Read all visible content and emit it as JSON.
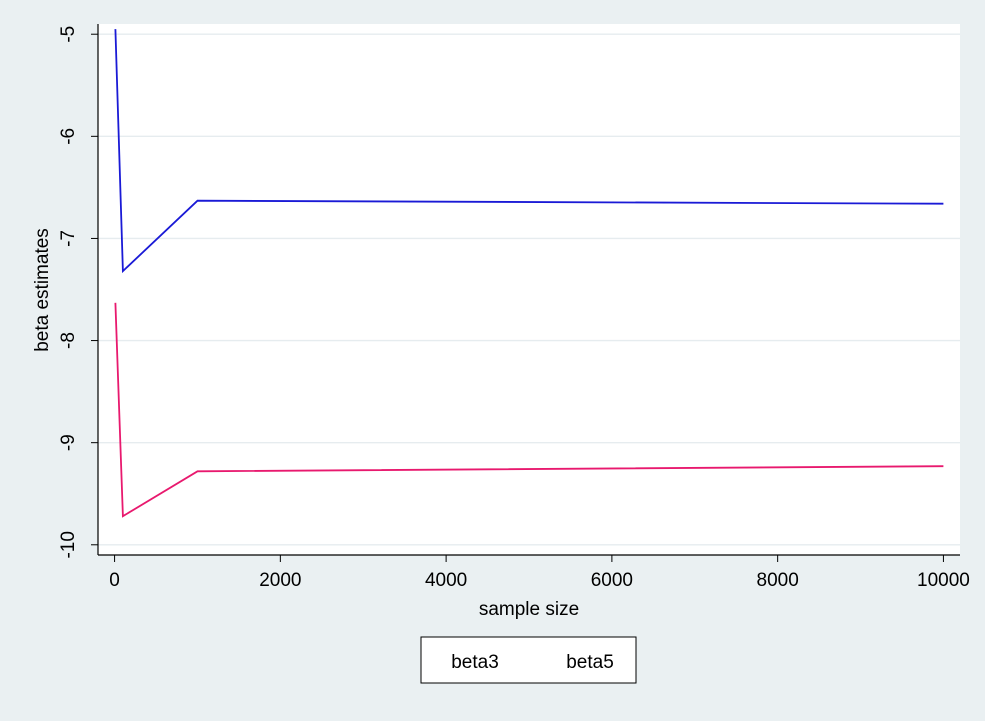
{
  "chart_data": {
    "type": "line",
    "title": "",
    "xlabel": "sample size",
    "ylabel": "beta estimates",
    "xlim": [
      -200,
      10200
    ],
    "ylim": [
      -10.1,
      -4.9
    ],
    "xticks": [
      0,
      2000,
      4000,
      6000,
      8000,
      10000
    ],
    "xtick_labels": [
      "0",
      "2000",
      "4000",
      "6000",
      "8000",
      "10000"
    ],
    "yticks": [
      -10,
      -9,
      -8,
      -7,
      -6,
      -5
    ],
    "ytick_labels": [
      "-10",
      "-9",
      "-8",
      "-7",
      "-6",
      "-5"
    ],
    "grid": true,
    "legend_position": "bottom",
    "series": [
      {
        "name": "beta3",
        "color": "#1a1ad6",
        "x": [
          10,
          100,
          1000,
          10000
        ],
        "y": [
          -4.95,
          -7.32,
          -6.63,
          -6.66
        ]
      },
      {
        "name": "beta5",
        "color": "#e8196e",
        "x": [
          10,
          100,
          1000,
          10000
        ],
        "y": [
          -7.63,
          -9.72,
          -9.28,
          -9.23
        ]
      }
    ]
  }
}
